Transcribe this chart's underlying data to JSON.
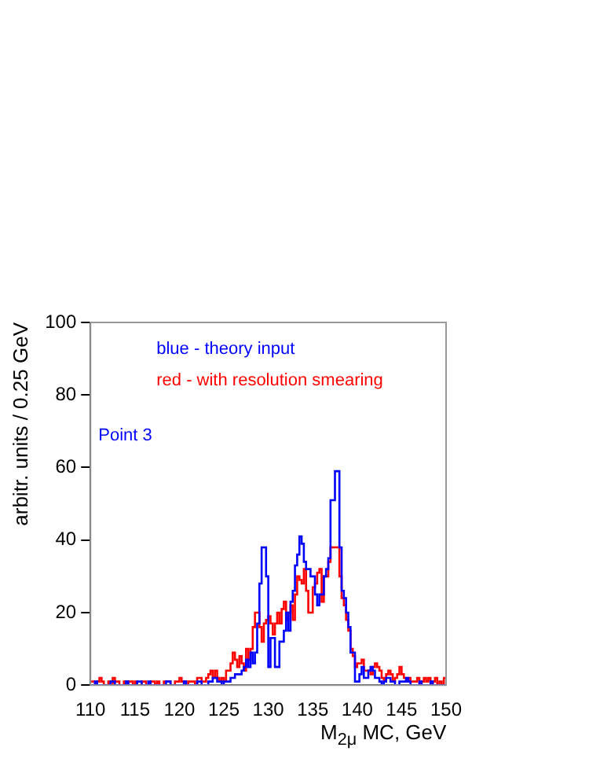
{
  "chart_data": {
    "type": "histogram",
    "xlabel": "M$_{2μ}$ MC, GeV",
    "ylabel": "arbitr. units / 0.25 GeV",
    "annotations": [
      "Point 3"
    ],
    "bins": [
      110,
      110.25,
      110.5,
      110.75,
      111,
      111.25,
      111.5,
      111.75,
      112,
      112.25,
      112.5,
      112.75,
      113,
      113.25,
      113.5,
      113.75,
      114,
      114.25,
      114.5,
      114.75,
      115,
      115.25,
      115.5,
      115.75,
      116,
      116.25,
      116.5,
      116.75,
      117,
      117.25,
      117.5,
      117.75,
      118,
      118.25,
      118.5,
      118.75,
      119,
      119.25,
      119.5,
      119.75,
      120,
      120.25,
      120.5,
      120.75,
      121,
      121.25,
      121.5,
      121.75,
      122,
      122.25,
      122.5,
      122.75,
      123,
      123.25,
      123.5,
      123.75,
      124,
      124.25,
      124.5,
      124.75,
      125,
      125.25,
      125.5,
      125.75,
      126,
      126.25,
      126.5,
      126.75,
      127,
      127.25,
      127.5,
      127.75,
      128,
      128.25,
      128.5,
      128.75,
      129,
      129.25,
      129.5,
      129.75,
      130,
      130.25,
      130.5,
      130.75,
      131,
      131.25,
      131.5,
      131.75,
      132,
      132.25,
      132.5,
      132.75,
      133,
      133.25,
      133.5,
      133.75,
      134,
      134.25,
      134.5,
      134.75,
      135,
      135.25,
      135.5,
      135.75,
      136,
      136.25,
      136.5,
      136.75,
      137,
      137.25,
      137.5,
      137.75,
      138,
      138.25,
      138.5,
      138.75,
      139,
      139.25,
      139.5,
      139.75,
      140,
      140.25,
      140.5,
      140.75,
      141,
      141.25,
      141.5,
      141.75,
      142,
      142.25,
      142.5,
      142.75,
      143,
      143.25,
      143.5,
      143.75,
      144,
      144.25,
      144.5,
      144.75,
      145,
      145.25,
      145.5,
      145.75,
      146,
      146.25,
      146.5,
      146.75,
      147,
      147.25,
      147.5,
      147.75,
      148,
      148.25,
      148.5,
      148.75,
      149,
      149.25,
      149.5,
      149.75,
      150
    ],
    "xlim": [
      110,
      150
    ],
    "xticks": [
      110,
      115,
      120,
      125,
      130,
      135,
      140,
      145,
      150
    ],
    "ylim": [
      0,
      100
    ],
    "yticks": [
      0,
      20,
      40,
      60,
      80,
      100
    ],
    "grid": false,
    "series": [
      {
        "name": "blue - theory input",
        "color": "#0000ff",
        "values": [
          0,
          0,
          1,
          0,
          0,
          0,
          0,
          0,
          0,
          1,
          1,
          0,
          0,
          0,
          0,
          0,
          1,
          0,
          0,
          0,
          0,
          1,
          1,
          0,
          0,
          0,
          1,
          0,
          0,
          0,
          0,
          0,
          0,
          0,
          1,
          1,
          0,
          0,
          0,
          0,
          0,
          0,
          1,
          0,
          0,
          0,
          0,
          0,
          1,
          1,
          0,
          0,
          0,
          1,
          1,
          2,
          2,
          1,
          1,
          0,
          1,
          1,
          1,
          2,
          2,
          3,
          3,
          3,
          4,
          5,
          7,
          5,
          9,
          6,
          9,
          17,
          28,
          38,
          38,
          30,
          5,
          13,
          13,
          5,
          5,
          12,
          12,
          15,
          20,
          15,
          23,
          26,
          33,
          36,
          41,
          39,
          34,
          32,
          32,
          30,
          30,
          25,
          22,
          25,
          25,
          30,
          32,
          35,
          51,
          51,
          59,
          59,
          38,
          26,
          24,
          20,
          16,
          9,
          9,
          1,
          1,
          3,
          5,
          2,
          2,
          4,
          5,
          4,
          2,
          2,
          1,
          0,
          1,
          2,
          2,
          1,
          1,
          0,
          0,
          1,
          1,
          1,
          2,
          1,
          0,
          0,
          0,
          0,
          1,
          0,
          0,
          0,
          0,
          1,
          0,
          0,
          0,
          0,
          0,
          0
        ]
      },
      {
        "name": "red - with resolution smearing",
        "color": "#ff0000",
        "values": [
          1,
          1,
          0,
          1,
          2,
          1,
          0,
          0,
          1,
          0,
          2,
          1,
          1,
          0,
          0,
          1,
          0,
          1,
          1,
          0,
          1,
          0,
          0,
          1,
          1,
          0,
          0,
          1,
          1,
          0,
          1,
          0,
          0,
          1,
          1,
          1,
          0,
          0,
          1,
          1,
          2,
          1,
          1,
          0,
          1,
          1,
          1,
          0,
          2,
          2,
          1,
          1,
          2,
          3,
          4,
          2,
          4,
          2,
          1,
          2,
          1,
          4,
          4,
          6,
          9,
          7,
          5,
          8,
          6,
          4,
          10,
          7,
          10,
          16,
          20,
          20,
          16,
          12,
          17,
          18,
          19,
          17,
          14,
          17,
          20,
          17,
          21,
          23,
          18,
          20,
          22,
          18,
          25,
          30,
          29,
          28,
          32,
          26,
          20,
          20,
          27,
          28,
          31,
          32,
          23,
          30,
          30,
          34,
          38,
          38,
          38,
          38,
          30,
          24,
          22,
          18,
          15,
          10,
          8,
          5,
          6,
          6,
          7,
          4,
          4,
          4,
          3,
          5,
          6,
          5,
          4,
          2,
          1,
          3,
          4,
          3,
          1,
          2,
          3,
          5,
          3,
          2,
          1,
          2,
          1,
          1,
          1,
          2,
          0,
          1,
          2,
          1,
          2,
          0,
          1,
          2,
          0,
          1,
          0,
          2
        ]
      }
    ]
  }
}
